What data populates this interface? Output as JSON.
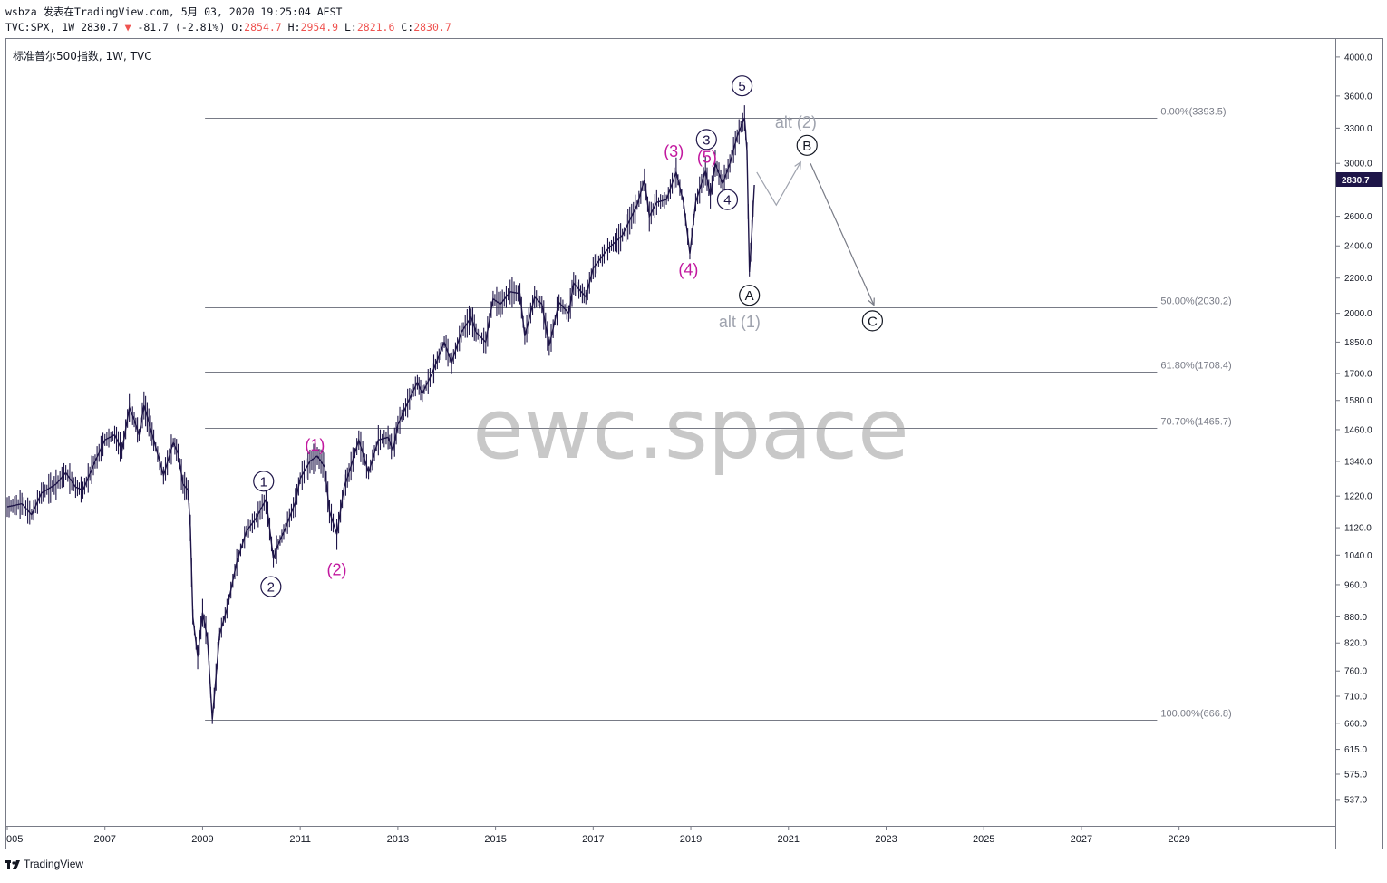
{
  "header": {
    "user": "wsbza",
    "published": "发表在TradingView.com, 5月 03, 2020 19:25:04 AEST",
    "symbol_line": "TVC:SPX, 1W 2830.7",
    "change_arrow": "▼",
    "change": "-81.7 (-2.81%)",
    "o_label": "O:",
    "o_value": "2854.7",
    "h_label": "H:",
    "h_value": "2954.9",
    "l_label": "L:",
    "l_value": "2821.6",
    "c_label": "C:",
    "c_value": "2830.7"
  },
  "subtitle": "标准普尔500指数, 1W, TVC",
  "watermark": "ewc.space",
  "footer": {
    "brand": "TradingView"
  },
  "colors": {
    "price": "#1e1548",
    "magenta": "#c2189f",
    "alt": "#9fa3ae",
    "fib": "#787b86",
    "last_price_bg": "#1e1548"
  },
  "chart_data": {
    "type": "line",
    "y_scale": "log",
    "ylim": [
      500,
      4200
    ],
    "xlim": [
      2005.0,
      2032.2
    ],
    "y_ticks": [
      537.0,
      575.0,
      615.0,
      660.0,
      710.0,
      760.0,
      820.0,
      880.0,
      960.0,
      1040.0,
      1120.0,
      1220.0,
      1340.0,
      1460.0,
      1580.0,
      1700.0,
      1850.0,
      2000.0,
      2200.0,
      2400.0,
      2600.0,
      3000.0,
      3300.0,
      3600.0,
      4000.0
    ],
    "x_ticks": [
      "005",
      "2007",
      "2009",
      "2011",
      "2013",
      "2015",
      "2017",
      "2019",
      "2021",
      "2023",
      "2025",
      "2027",
      "2029"
    ],
    "x_tick_years": [
      2005.0,
      2007.0,
      2009.0,
      2011.0,
      2013.0,
      2015.0,
      2017.0,
      2019.0,
      2021.0,
      2023.0,
      2025.0,
      2027.0,
      2029.0
    ],
    "last_price": "2830.7",
    "series": [
      {
        "values": [
          [
            2005.0,
            1185
          ],
          [
            2005.3,
            1195
          ],
          [
            2005.5,
            1160
          ],
          [
            2005.7,
            1230
          ],
          [
            2006.0,
            1260
          ],
          [
            2006.2,
            1300
          ],
          [
            2006.4,
            1250
          ],
          [
            2006.55,
            1240
          ],
          [
            2006.8,
            1340
          ],
          [
            2007.0,
            1420
          ],
          [
            2007.2,
            1440
          ],
          [
            2007.35,
            1380
          ],
          [
            2007.5,
            1550
          ],
          [
            2007.6,
            1500
          ],
          [
            2007.7,
            1440
          ],
          [
            2007.8,
            1560
          ],
          [
            2007.9,
            1490
          ],
          [
            2008.0,
            1420
          ],
          [
            2008.2,
            1290
          ],
          [
            2008.4,
            1410
          ],
          [
            2008.5,
            1370
          ],
          [
            2008.6,
            1260
          ],
          [
            2008.7,
            1240
          ],
          [
            2008.75,
            1120
          ],
          [
            2008.8,
            880
          ],
          [
            2008.9,
            790
          ],
          [
            2009.0,
            890
          ],
          [
            2009.1,
            830
          ],
          [
            2009.2,
            667
          ],
          [
            2009.35,
            840
          ],
          [
            2009.5,
            900
          ],
          [
            2009.7,
            1020
          ],
          [
            2009.9,
            1110
          ],
          [
            2010.1,
            1150
          ],
          [
            2010.3,
            1210
          ],
          [
            2010.45,
            1030
          ],
          [
            2010.55,
            1070
          ],
          [
            2010.7,
            1120
          ],
          [
            2010.9,
            1200
          ],
          [
            2011.0,
            1280
          ],
          [
            2011.2,
            1340
          ],
          [
            2011.35,
            1360
          ],
          [
            2011.5,
            1320
          ],
          [
            2011.6,
            1170
          ],
          [
            2011.75,
            1100
          ],
          [
            2011.9,
            1250
          ],
          [
            2012.0,
            1300
          ],
          [
            2012.2,
            1420
          ],
          [
            2012.4,
            1300
          ],
          [
            2012.6,
            1420
          ],
          [
            2012.8,
            1430
          ],
          [
            2012.9,
            1380
          ],
          [
            2013.0,
            1480
          ],
          [
            2013.2,
            1570
          ],
          [
            2013.4,
            1660
          ],
          [
            2013.5,
            1610
          ],
          [
            2013.7,
            1700
          ],
          [
            2013.95,
            1850
          ],
          [
            2014.1,
            1750
          ],
          [
            2014.3,
            1900
          ],
          [
            2014.5,
            1980
          ],
          [
            2014.6,
            1900
          ],
          [
            2014.8,
            1850
          ],
          [
            2014.95,
            2080
          ],
          [
            2015.1,
            2050
          ],
          [
            2015.3,
            2120
          ],
          [
            2015.5,
            2110
          ],
          [
            2015.6,
            1880
          ],
          [
            2015.8,
            2090
          ],
          [
            2015.95,
            2050
          ],
          [
            2016.1,
            1830
          ],
          [
            2016.3,
            2060
          ],
          [
            2016.5,
            2000
          ],
          [
            2016.6,
            2170
          ],
          [
            2016.85,
            2090
          ],
          [
            2017.0,
            2260
          ],
          [
            2017.3,
            2380
          ],
          [
            2017.6,
            2470
          ],
          [
            2017.9,
            2680
          ],
          [
            2018.05,
            2870
          ],
          [
            2018.15,
            2600
          ],
          [
            2018.3,
            2700
          ],
          [
            2018.5,
            2720
          ],
          [
            2018.7,
            2930
          ],
          [
            2018.85,
            2700
          ],
          [
            2018.98,
            2350
          ],
          [
            2019.1,
            2700
          ],
          [
            2019.3,
            2940
          ],
          [
            2019.4,
            2750
          ],
          [
            2019.5,
            3000
          ],
          [
            2019.65,
            2840
          ],
          [
            2019.8,
            3000
          ],
          [
            2019.95,
            3230
          ],
          [
            2020.1,
            3393
          ],
          [
            2020.15,
            3100
          ],
          [
            2020.2,
            2237
          ],
          [
            2020.25,
            2490
          ],
          [
            2020.3,
            2830
          ]
        ]
      }
    ],
    "fib_levels": [
      {
        "value": 3393.5,
        "label": "0.00%(3393.5)"
      },
      {
        "value": 2030.2,
        "label": "50.00%(2030.2)"
      },
      {
        "value": 1708.4,
        "label": "61.80%(1708.4)"
      },
      {
        "value": 1465.7,
        "label": "70.70%(1465.7)"
      },
      {
        "value": 666.8,
        "label": "100.00%(666.8)"
      }
    ],
    "annotations": [
      {
        "text": "1",
        "style": "circle",
        "color": "#1e1548",
        "x": 2010.25,
        "y": 1270
      },
      {
        "text": "2",
        "style": "circle",
        "color": "#1e1548",
        "x": 2010.4,
        "y": 955
      },
      {
        "text": "3",
        "style": "circle",
        "color": "#1e1548",
        "x": 2019.32,
        "y": 3200
      },
      {
        "text": "4",
        "style": "circle",
        "color": "#1e1548",
        "x": 2019.75,
        "y": 2720
      },
      {
        "text": "5",
        "style": "circle",
        "color": "#1e1548",
        "x": 2020.05,
        "y": 3700
      },
      {
        "text": "(1)",
        "style": "plain",
        "color": "#c2189f",
        "x": 2011.3,
        "y": 1400
      },
      {
        "text": "(2)",
        "style": "plain",
        "color": "#c2189f",
        "x": 2011.75,
        "y": 1000
      },
      {
        "text": "(3)",
        "style": "plain",
        "color": "#c2189f",
        "x": 2018.65,
        "y": 3100
      },
      {
        "text": "(5)",
        "style": "plain",
        "color": "#c2189f",
        "x": 2019.33,
        "y": 3050
      },
      {
        "text": "(4)",
        "style": "plain",
        "color": "#c2189f",
        "x": 2018.95,
        "y": 2250
      },
      {
        "text": "A",
        "style": "circle",
        "color": "#131722",
        "x": 2020.2,
        "y": 2100
      },
      {
        "text": "B",
        "style": "circle",
        "color": "#131722",
        "x": 2021.38,
        "y": 3150
      },
      {
        "text": "C",
        "style": "circle",
        "color": "#131722",
        "x": 2022.72,
        "y": 1960
      },
      {
        "text": "alt (1)",
        "style": "plain",
        "color": "#9fa3ae",
        "x": 2020.0,
        "y": 1955
      },
      {
        "text": "alt (2)",
        "style": "plain",
        "color": "#9fa3ae",
        "x": 2021.15,
        "y": 3350
      }
    ],
    "paths": [
      {
        "color": "#9fa3ae",
        "points": [
          [
            2020.35,
            2930
          ],
          [
            2020.75,
            2680
          ],
          [
            2021.25,
            3010
          ]
        ]
      },
      {
        "color": "#787b86",
        "points": [
          [
            2021.45,
            3000
          ],
          [
            2022.75,
            2045
          ]
        ]
      }
    ]
  }
}
